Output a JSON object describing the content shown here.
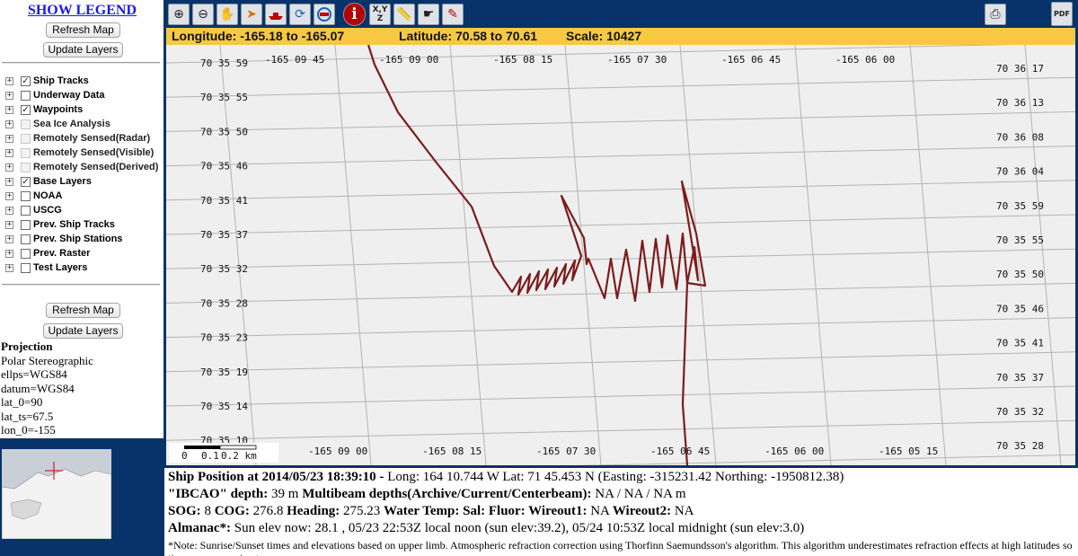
{
  "sidebar": {
    "legend_link": "SHOW LEGEND",
    "refresh_label": "Refresh Map",
    "update_label": "Update Layers",
    "layers": [
      {
        "label": "Ship Tracks",
        "checked": true,
        "enabled": true
      },
      {
        "label": "Underway Data",
        "checked": false,
        "enabled": true
      },
      {
        "label": "Waypoints",
        "checked": true,
        "enabled": true
      },
      {
        "label": "Sea Ice Analysis",
        "checked": false,
        "enabled": false
      },
      {
        "label": "Remotely Sensed(Radar)",
        "checked": false,
        "enabled": false
      },
      {
        "label": "Remotely Sensed(Visible)",
        "checked": false,
        "enabled": false
      },
      {
        "label": "Remotely Sensed(Derived)",
        "checked": false,
        "enabled": false
      },
      {
        "label": "Base Layers",
        "checked": true,
        "enabled": true
      },
      {
        "label": "NOAA",
        "checked": false,
        "enabled": true
      },
      {
        "label": "USCG",
        "checked": false,
        "enabled": true
      },
      {
        "label": "Prev. Ship Tracks",
        "checked": false,
        "enabled": true
      },
      {
        "label": "Prev. Ship Stations",
        "checked": false,
        "enabled": true
      },
      {
        "label": "Prev. Raster",
        "checked": false,
        "enabled": true
      },
      {
        "label": "Test Layers",
        "checked": false,
        "enabled": true
      }
    ],
    "projection": {
      "title": "Projection",
      "lines": [
        "Polar Stereographic",
        "ellps=WGS84",
        "datum=WGS84",
        "lat_0=90",
        "lat_ts=67.5",
        "lon_0=-155"
      ]
    }
  },
  "toolbar": {
    "tools": [
      "zoom-in-icon",
      "zoom-out-icon",
      "pan-hand-icon",
      "select-pointer-icon",
      "ship-icon",
      "recenter-icon",
      "ship-target-icon",
      "info-icon",
      "xyz-coordinate-icon",
      "ruler-icon",
      "hand-point-icon",
      "waypoint-pin-icon"
    ],
    "xyz_label": "X,Y\nZ",
    "info_glyph": "i",
    "print_icon": "printer-icon",
    "pdf_icon": "pdf-icon",
    "pdf_label": "PDF"
  },
  "coordbar": {
    "longitude": "Longitude: -165.18 to -165.07",
    "latitude": "Latitude: 70.58 to 70.61",
    "scale": "Scale: 10427"
  },
  "map": {
    "colors": {
      "background": "#efefef",
      "grid": "#b3b3b3",
      "track": "#7d1a1a",
      "accent": "#07336a",
      "coordbar": "#f7c842"
    },
    "lat_labels_left": [
      "70 35 59",
      "70 35 55",
      "70 35 50",
      "70 35 46",
      "70 35 41",
      "70 35 37",
      "70 35 32",
      "70 35 28",
      "70 35 23",
      "70 35 19",
      "70 35 14",
      "70 35 10"
    ],
    "lat_labels_right": [
      "70 36 17",
      "70 36 13",
      "70 36 08",
      "70 36 04",
      "70 35 59",
      "70 35 55",
      "70 35 50",
      "70 35 46",
      "70 35 41",
      "70 35 37",
      "70 35 32",
      "70 35 28"
    ],
    "lon_labels_top": [
      "-165 09 45",
      "-165 09 00",
      "-165 08 15",
      "-165 07 30",
      "-165 06 45",
      "-165 06 00"
    ],
    "lon_labels_bottom": [
      "-165 09 00",
      "-165 08 15",
      "-165 07 30",
      "-165 06 45",
      "-165 06 00",
      "-165 05 15"
    ],
    "scalebar_labels": [
      "0",
      "0.1",
      "0.2 km"
    ]
  },
  "status": {
    "pos_label": "Ship Position at 2014/05/23 18:39:10 -",
    "pos_value": " Long: 164 10.744 W   Lat: 71 45.453 N (Easting: -315231.42 Northing: -1950812.38)",
    "depth_label": "\"IBCAO\" depth:",
    "depth_value": " 39 m  ",
    "mb_label": "Multibeam depths(Archive/Current/Centerbeam):",
    "mb_value": " NA / NA / NA m",
    "sog_label": "SOG:",
    "sog_value": " 8 ",
    "cog_label": "COG:",
    "cog_value": " 276.8 ",
    "heading_label": "Heading:",
    "heading_value": " 275.23 ",
    "wtemp_label": "Water Temp:",
    "sal_label": " Sal:",
    "fluor_label": " Fluor:",
    "wo1_label": " Wireout1:",
    "wo1_value": " NA ",
    "wo2_label": "Wireout2:",
    "wo2_value": " NA",
    "almanac_label": "Almanac*:",
    "almanac_value": " Sun elev now: 28.1 , 05/23 22:53Z local noon (sun elev:39.2),  05/24 10:53Z local midnight (sun elev:3.0)",
    "note": "*Note: Sunrise/Sunset times and elevations based on upper limb. Atmospheric refraction correction using Thorfinn Saemundsson's algorithm. This algorithm underestimates refraction effects at high latitudes so times are approximate."
  }
}
